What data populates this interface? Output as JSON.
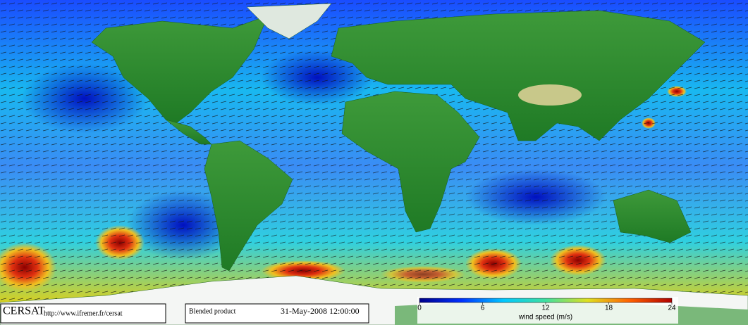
{
  "footer": {
    "logo": "CERSAT",
    "url": "http://www.ifremer.fr/cersat",
    "product": "Blended product",
    "date": "31-May-2008 12:00:00"
  },
  "colorbar": {
    "range": [
      0,
      24
    ],
    "ticks": [
      0,
      6,
      12,
      18,
      24
    ],
    "label": "wind speed (m/s)",
    "colors": [
      "#00008b",
      "#0030ff",
      "#00c8ff",
      "#40e0a0",
      "#e0e020",
      "#ff6000",
      "#b00000"
    ]
  }
}
